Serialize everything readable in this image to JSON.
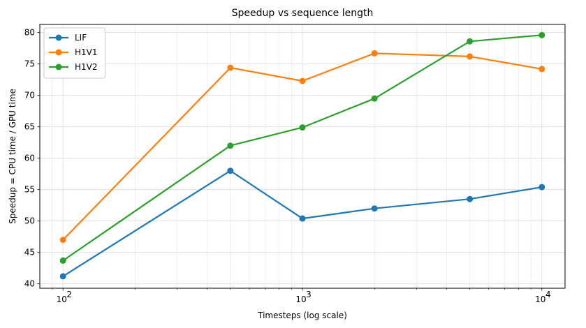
{
  "chart_data": {
    "type": "line",
    "title": "Speedup vs sequence length",
    "xlabel": "Timesteps (log scale)",
    "ylabel": "Speedup = CPU time / GPU time",
    "xscale": "log",
    "xlim": [
      80,
      12500
    ],
    "ylim": [
      39.3,
      81.3
    ],
    "yticks": [
      40,
      45,
      50,
      55,
      60,
      65,
      70,
      75,
      80
    ],
    "xticks": [
      {
        "value": 100,
        "base": "10",
        "exp": "2"
      },
      {
        "value": 1000,
        "base": "10",
        "exp": "3"
      },
      {
        "value": 10000,
        "base": "10",
        "exp": "4"
      }
    ],
    "grid": true,
    "legend_position": "top-left",
    "x": [
      100,
      500,
      1000,
      2000,
      5000,
      10000
    ],
    "series": [
      {
        "name": "LIF",
        "color": "#1f77b4",
        "values": [
          41.2,
          58.0,
          50.4,
          52.0,
          53.5,
          55.4
        ]
      },
      {
        "name": "H1V1",
        "color": "#ff7f0e",
        "values": [
          47.0,
          74.4,
          72.3,
          76.7,
          76.2,
          74.2
        ]
      },
      {
        "name": "H1V2",
        "color": "#2ca02c",
        "values": [
          43.7,
          62.0,
          64.9,
          69.5,
          78.6,
          79.6
        ]
      }
    ]
  }
}
